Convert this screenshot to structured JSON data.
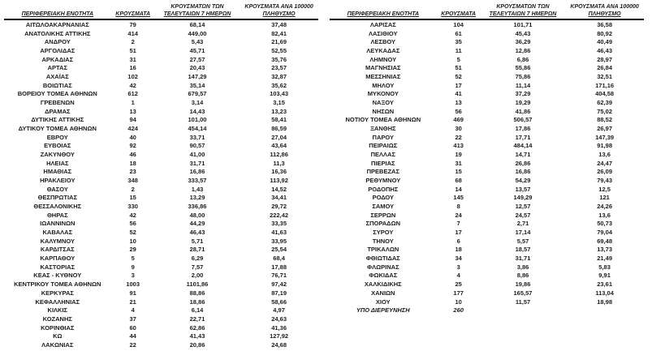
{
  "colors": {
    "text": "#1c1c1c",
    "header_rule": "#000000",
    "background": "#ffffff"
  },
  "headers": {
    "region": "ΠΕΡΙΦΕΡΕΙΑΚΗ ΕΝΟΤΗΤΑ",
    "cases": "ΚΡΟΥΣΜΑΤΑ",
    "last7_line1": "ΚΡΟΥΣΜΑΤΩΝ ΤΩΝ",
    "last7_line2": "ΤΕΛΕΥΤΑΙΩΝ 7 ΗΜΕΡΩΝ",
    "per100k_line1": "ΚΡΟΥΣΜΑΤΑ ΑΝΑ 100000",
    "per100k_line2": "ΠΛΗΘΥΣΜΟ"
  },
  "tables": [
    {
      "id": "left",
      "rows": [
        [
          "ΑΙΤΩΛΟΑΚΑΡΝΑΝΙΑΣ",
          "79",
          "68,14",
          "37,48"
        ],
        [
          "ΑΝΑΤΟΛΙΚΗΣ ΑΤΤΙΚΗΣ",
          "414",
          "449,00",
          "82,41"
        ],
        [
          "ΑΝΔΡΟΥ",
          "2",
          "5,43",
          "21,69"
        ],
        [
          "ΑΡΓΟΛΙΔΑΣ",
          "51",
          "45,71",
          "52,55"
        ],
        [
          "ΑΡΚΑΔΙΑΣ",
          "31",
          "27,57",
          "35,76"
        ],
        [
          "ΑΡΤΑΣ",
          "16",
          "20,43",
          "23,57"
        ],
        [
          "ΑΧΑΪΑΣ",
          "102",
          "147,29",
          "32,87"
        ],
        [
          "ΒΟΙΩΤΙΑΣ",
          "42",
          "35,14",
          "35,62"
        ],
        [
          "ΒΟΡΕΙΟΥ ΤΟΜΕΑ ΑΘΗΝΩΝ",
          "612",
          "679,57",
          "103,43"
        ],
        [
          "ΓΡΕΒΕΝΩΝ",
          "1",
          "3,14",
          "3,15"
        ],
        [
          "ΔΡΑΜΑΣ",
          "13",
          "14,43",
          "13,23"
        ],
        [
          "ΔΥΤΙΚΗΣ ΑΤΤΙΚΗΣ",
          "94",
          "101,00",
          "58,41"
        ],
        [
          "ΔΥΤΙΚΟΥ ΤΟΜΕΑ ΑΘΗΝΩΝ",
          "424",
          "454,14",
          "86,59"
        ],
        [
          "ΕΒΡΟΥ",
          "40",
          "33,71",
          "27,04"
        ],
        [
          "ΕΥΒΟΙΑΣ",
          "92",
          "90,57",
          "43,64"
        ],
        [
          "ΖΑΚΥΝΘΟΥ",
          "46",
          "41,00",
          "112,86"
        ],
        [
          "ΗΛΕΙΑΣ",
          "18",
          "31,71",
          "11,3"
        ],
        [
          "ΗΜΑΘΙΑΣ",
          "23",
          "16,86",
          "16,36"
        ],
        [
          "ΗΡΑΚΛΕΙΟΥ",
          "348",
          "333,57",
          "113,92"
        ],
        [
          "ΘΑΣΟΥ",
          "2",
          "1,43",
          "14,52"
        ],
        [
          "ΘΕΣΠΡΩΤΙΑΣ",
          "15",
          "13,29",
          "34,41"
        ],
        [
          "ΘΕΣΣΑΛΟΝΙΚΗΣ",
          "330",
          "336,86",
          "29,72"
        ],
        [
          "ΘΗΡΑΣ",
          "42",
          "48,00",
          "222,42"
        ],
        [
          "ΙΩΑΝΝΙΝΩΝ",
          "56",
          "44,29",
          "33,35"
        ],
        [
          "ΚΑΒΑΛΑΣ",
          "52",
          "46,43",
          "41,63"
        ],
        [
          "ΚΑΛΥΜΝΟΥ",
          "10",
          "5,71",
          "33,95"
        ],
        [
          "ΚΑΡΔΙΤΣΑΣ",
          "29",
          "28,71",
          "25,54"
        ],
        [
          "ΚΑΡΠΑΘΟΥ",
          "5",
          "6,29",
          "68,4"
        ],
        [
          "ΚΑΣΤΟΡΙΑΣ",
          "9",
          "7,57",
          "17,88"
        ],
        [
          "ΚΕΑΣ - ΚΥΘΝΟΥ",
          "3",
          "2,00",
          "76,71"
        ],
        [
          "ΚΕΝΤΡΙΚΟΥ ΤΟΜΕΑ ΑΘΗΝΩΝ",
          "1003",
          "1101,86",
          "97,42"
        ],
        [
          "ΚΕΡΚΥΡΑΣ",
          "91",
          "88,86",
          "87,19"
        ],
        [
          "ΚΕΦΑΛΛΗΝΙΑΣ",
          "21",
          "18,86",
          "58,66"
        ],
        [
          "ΚΙΛΚΙΣ",
          "4",
          "6,14",
          "4,97"
        ],
        [
          "ΚΟΖΑΝΗΣ",
          "37",
          "22,71",
          "24,63"
        ],
        [
          "ΚΟΡΙΝΘΙΑΣ",
          "60",
          "62,86",
          "41,36"
        ],
        [
          "ΚΩ",
          "44",
          "41,43",
          "127,92"
        ],
        [
          "ΛΑΚΩΝΙΑΣ",
          "22",
          "20,86",
          "24,68"
        ]
      ]
    },
    {
      "id": "right",
      "rows": [
        [
          "ΛΑΡΙΣΑΣ",
          "104",
          "101,71",
          "36,58"
        ],
        [
          "ΛΑΣΙΘΙΟΥ",
          "61",
          "45,43",
          "80,92"
        ],
        [
          "ΛΕΣΒΟΥ",
          "35",
          "36,29",
          "40,49"
        ],
        [
          "ΛΕΥΚΑΔΑΣ",
          "11",
          "12,86",
          "46,43"
        ],
        [
          "ΛΗΜΝΟΥ",
          "5",
          "6,86",
          "28,97"
        ],
        [
          "ΜΑΓΝΗΣΙΑΣ",
          "51",
          "55,86",
          "26,84"
        ],
        [
          "ΜΕΣΣΗΝΙΑΣ",
          "52",
          "75,86",
          "32,51"
        ],
        [
          "ΜΗΛΟΥ",
          "17",
          "11,14",
          "171,16"
        ],
        [
          "ΜΥΚΟΝΟΥ",
          "41",
          "37,29",
          "404,58"
        ],
        [
          "ΝΑΞΟΥ",
          "13",
          "19,29",
          "62,39"
        ],
        [
          "ΝΗΣΩΝ",
          "56",
          "41,86",
          "75,02"
        ],
        [
          "ΝΟΤΙΟΥ ΤΟΜΕΑ ΑΘΗΝΩΝ",
          "469",
          "506,57",
          "88,52"
        ],
        [
          "ΞΑΝΘΗΣ",
          "30",
          "17,86",
          "26,97"
        ],
        [
          "ΠΑΡΟΥ",
          "22",
          "17,71",
          "147,39"
        ],
        [
          "ΠΕΙΡΑΙΩΣ",
          "413",
          "484,14",
          "91,98"
        ],
        [
          "ΠΕΛΛΑΣ",
          "19",
          "14,71",
          "13,6"
        ],
        [
          "ΠΙΕΡΙΑΣ",
          "31",
          "26,86",
          "24,47"
        ],
        [
          "ΠΡΕΒΕΖΑΣ",
          "15",
          "16,86",
          "26,09"
        ],
        [
          "ΡΕΘΥΜΝΟΥ",
          "68",
          "54,29",
          "79,43"
        ],
        [
          "ΡΟΔΟΠΗΣ",
          "14",
          "13,57",
          "12,5"
        ],
        [
          "ΡΟΔΟΥ",
          "145",
          "149,29",
          "121"
        ],
        [
          "ΣΑΜΟΥ",
          "8",
          "12,57",
          "24,26"
        ],
        [
          "ΣΕΡΡΩΝ",
          "24",
          "24,57",
          "13,6"
        ],
        [
          "ΣΠΟΡΑΔΩΝ",
          "7",
          "2,71",
          "50,73"
        ],
        [
          "ΣΥΡΟΥ",
          "17",
          "17,14",
          "79,04"
        ],
        [
          "ΤΗΝΟΥ",
          "6",
          "5,57",
          "69,48"
        ],
        [
          "ΤΡΙΚΑΛΩΝ",
          "18",
          "18,57",
          "13,73"
        ],
        [
          "ΦΘΙΩΤΙΔΑΣ",
          "34",
          "31,71",
          "21,49"
        ],
        [
          "ΦΛΩΡΙΝΑΣ",
          "3",
          "3,86",
          "5,83"
        ],
        [
          "ΦΩΚΙΔΑΣ",
          "4",
          "8,86",
          "9,91"
        ],
        [
          "ΧΑΛΚΙΔΙΚΗΣ",
          "25",
          "19,86",
          "23,61"
        ],
        [
          "ΧΑΝΙΩΝ",
          "177",
          "165,57",
          "113,04"
        ],
        [
          "ΧΙΟΥ",
          "10",
          "11,57",
          "18,98"
        ],
        [
          "ΥΠΟ ΔΙΕΡΕΥΝΗΣΗ",
          "260",
          "",
          "",
          "italic"
        ]
      ]
    }
  ]
}
